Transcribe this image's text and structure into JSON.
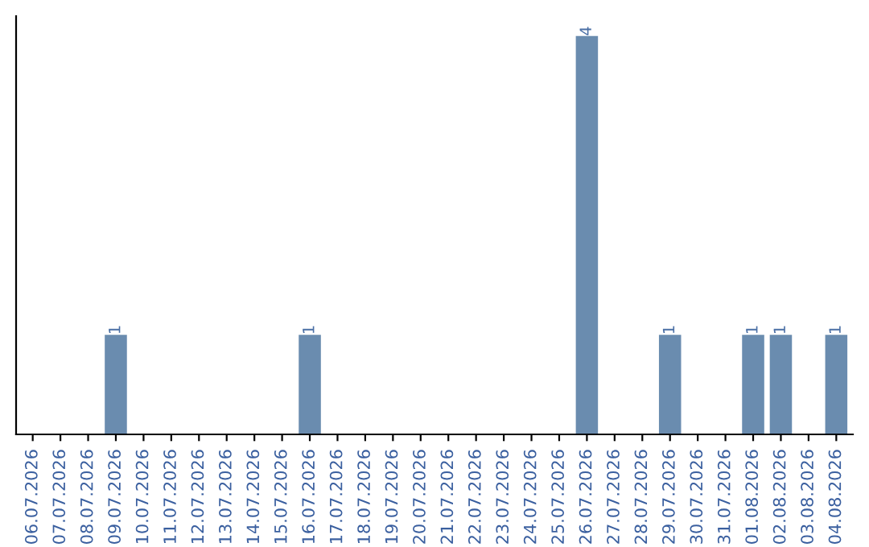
{
  "chart_data": {
    "type": "bar",
    "categories": [
      "06.07.2026",
      "07.07.2026",
      "08.07.2026",
      "09.07.2026",
      "10.07.2026",
      "11.07.2026",
      "12.07.2026",
      "13.07.2026",
      "14.07.2026",
      "15.07.2026",
      "16.07.2026",
      "17.07.2026",
      "18.07.2026",
      "19.07.2026",
      "20.07.2026",
      "21.07.2026",
      "22.07.2026",
      "23.07.2026",
      "24.07.2026",
      "25.07.2026",
      "26.07.2026",
      "27.07.2026",
      "28.07.2026",
      "29.07.2026",
      "30.07.2026",
      "31.07.2026",
      "01.08.2026",
      "02.08.2026",
      "03.08.2026",
      "04.08.2026"
    ],
    "values": [
      0,
      0,
      0,
      1,
      0,
      0,
      0,
      0,
      0,
      0,
      1,
      0,
      0,
      0,
      0,
      0,
      0,
      0,
      0,
      0,
      4,
      0,
      0,
      1,
      0,
      0,
      1,
      1,
      0,
      1
    ],
    "value_labels": [
      null,
      null,
      null,
      "1",
      null,
      null,
      null,
      null,
      null,
      null,
      "1",
      null,
      null,
      null,
      null,
      null,
      null,
      null,
      null,
      null,
      "4",
      null,
      null,
      "1",
      null,
      null,
      "1",
      "1",
      null,
      "1"
    ],
    "color": "#6a8caf",
    "ylim": [
      0,
      4.2
    ],
    "tick_labels": "x",
    "grid": false,
    "legend": false
  }
}
